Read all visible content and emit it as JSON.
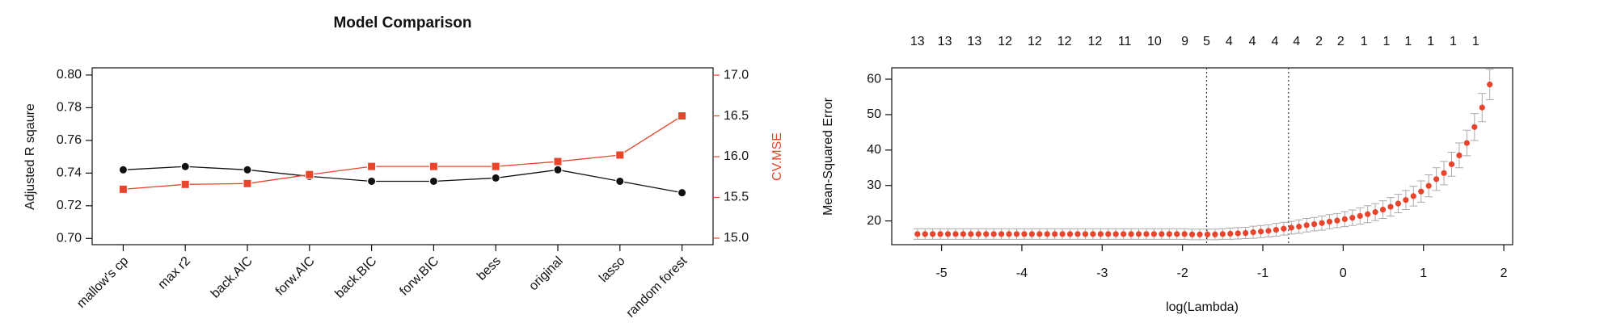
{
  "chart_data": [
    {
      "type": "line",
      "title": "Model Comparison",
      "ylabel": "Adjusted R sqaure",
      "y2label": "CV.MSE",
      "categories": [
        "mallow's cp",
        "max r2",
        "back.AIC",
        "forw.AIC",
        "back.BIC",
        "forw.BIC",
        "bess",
        "original",
        "lasso",
        "random forest"
      ],
      "series": [
        {
          "color": "#111111",
          "values": [
            0.742,
            0.744,
            0.742,
            0.738,
            0.735,
            0.735,
            0.737,
            0.742,
            0.735,
            0.728
          ]
        },
        {
          "color": "#e8452c",
          "axis": "y2",
          "values": [
            15.6,
            15.66,
            15.67,
            15.78,
            15.88,
            15.88,
            15.88,
            15.94,
            16.02,
            16.5
          ]
        }
      ],
      "ylim": [
        0.6962,
        0.8044
      ],
      "yticks": [
        {
          "value": 0.7,
          "label": "0.70"
        },
        {
          "value": 0.72,
          "label": "0.72"
        },
        {
          "value": 0.74,
          "label": "0.74"
        },
        {
          "value": 0.76,
          "label": "0.76"
        },
        {
          "value": 0.78,
          "label": "0.78"
        },
        {
          "value": 0.8,
          "label": "0.80"
        }
      ],
      "y2lim": [
        14.92,
        17.09
      ],
      "y2ticks": [
        {
          "value": 15,
          "label": "15.0"
        },
        {
          "value": 15.5,
          "label": "15.5"
        },
        {
          "value": 16,
          "label": "16.0"
        },
        {
          "value": 16.5,
          "label": "16.5"
        },
        {
          "value": 17,
          "label": "17.0"
        }
      ],
      "y2color": "#e8452c"
    },
    {
      "type": "errorbar",
      "xlabel": "log(Lambda)",
      "ylabel": "Mean-Squared Error",
      "color": "#e8452c",
      "error_color": "#aaaaaa",
      "x": [
        -5.3,
        -5.205,
        -5.11,
        -5.015,
        -4.92,
        -4.825,
        -4.73,
        -4.635,
        -4.54,
        -4.445,
        -4.35,
        -4.255,
        -4.16,
        -4.065,
        -3.97,
        -3.875,
        -3.78,
        -3.685,
        -3.59,
        -3.495,
        -3.4,
        -3.305,
        -3.21,
        -3.115,
        -3.02,
        -2.925,
        -2.83,
        -2.735,
        -2.64,
        -2.545,
        -2.45,
        -2.355,
        -2.26,
        -2.165,
        -2.07,
        -1.975,
        -1.88,
        -1.785,
        -1.69,
        -1.595,
        -1.5,
        -1.405,
        -1.31,
        -1.215,
        -1.12,
        -1.025,
        -0.93,
        -0.835,
        -0.74,
        -0.645,
        -0.55,
        -0.455,
        -0.36,
        -0.265,
        -0.17,
        -0.075,
        0.02,
        0.115,
        0.21,
        0.305,
        0.4,
        0.495,
        0.59,
        0.685,
        0.78,
        0.875,
        0.97,
        1.065,
        1.16,
        1.255,
        1.35,
        1.445,
        1.54,
        1.635,
        1.73,
        1.825
      ],
      "values": [
        16.3,
        16.3,
        16.3,
        16.3,
        16.3,
        16.3,
        16.3,
        16.3,
        16.3,
        16.3,
        16.3,
        16.3,
        16.3,
        16.3,
        16.3,
        16.3,
        16.3,
        16.3,
        16.3,
        16.3,
        16.3,
        16.3,
        16.3,
        16.3,
        16.3,
        16.3,
        16.3,
        16.3,
        16.3,
        16.3,
        16.3,
        16.3,
        16.3,
        16.3,
        16.3,
        16.3,
        16.2,
        16.2,
        16.2,
        16.2,
        16.3,
        16.4,
        16.5,
        16.6,
        16.8,
        17.0,
        17.2,
        17.5,
        17.8,
        18.1,
        18.4,
        18.8,
        19.1,
        19.4,
        19.8,
        20.1,
        20.5,
        20.9,
        21.4,
        21.9,
        22.5,
        23.2,
        24.0,
        24.9,
        25.9,
        27.0,
        28.3,
        29.9,
        31.8,
        33.5,
        36.0,
        38.5,
        42.0,
        46.5,
        52.0,
        58.5
      ],
      "errors": [
        1.5,
        1.5,
        1.5,
        1.5,
        1.5,
        1.5,
        1.5,
        1.5,
        1.5,
        1.5,
        1.5,
        1.5,
        1.5,
        1.5,
        1.5,
        1.5,
        1.5,
        1.5,
        1.5,
        1.5,
        1.5,
        1.5,
        1.5,
        1.5,
        1.5,
        1.5,
        1.5,
        1.5,
        1.5,
        1.5,
        1.5,
        1.5,
        1.5,
        1.5,
        1.5,
        1.5,
        1.5,
        1.5,
        1.5,
        1.5,
        1.5,
        1.6,
        1.6,
        1.6,
        1.7,
        1.7,
        1.7,
        1.8,
        1.8,
        1.8,
        1.9,
        1.9,
        1.9,
        2.0,
        2.0,
        2.0,
        2.1,
        2.2,
        2.3,
        2.4,
        2.4,
        2.5,
        2.6,
        2.6,
        2.7,
        2.8,
        3.0,
        3.1,
        3.2,
        3.3,
        3.4,
        3.5,
        3.6,
        3.8,
        4.0,
        4.3
      ],
      "xlim": [
        -5.62,
        2.11
      ],
      "xticks": [
        -5,
        -4,
        -3,
        -2,
        -1,
        0,
        1,
        2
      ],
      "ylim": [
        13.3,
        63.2
      ],
      "yticks": [
        20,
        30,
        40,
        50,
        60
      ],
      "top_ticks": [
        {
          "value": -5.3,
          "label": "13"
        },
        {
          "value": -4.96,
          "label": "13"
        },
        {
          "value": -4.59,
          "label": "13"
        },
        {
          "value": -4.21,
          "label": "12"
        },
        {
          "value": -3.84,
          "label": "12"
        },
        {
          "value": -3.47,
          "label": "12"
        },
        {
          "value": -3.09,
          "label": "12"
        },
        {
          "value": -2.72,
          "label": "11"
        },
        {
          "value": -2.35,
          "label": "10"
        },
        {
          "value": -1.97,
          "label": "9"
        },
        {
          "value": -1.7,
          "label": "5"
        },
        {
          "value": -1.42,
          "label": "4"
        },
        {
          "value": -1.13,
          "label": "4"
        },
        {
          "value": -0.85,
          "label": "4"
        },
        {
          "value": -0.58,
          "label": "4"
        },
        {
          "value": -0.3,
          "label": "2"
        },
        {
          "value": -0.03,
          "label": "2"
        },
        {
          "value": 0.26,
          "label": "1"
        },
        {
          "value": 0.54,
          "label": "1"
        },
        {
          "value": 0.81,
          "label": "1"
        },
        {
          "value": 1.09,
          "label": "1"
        },
        {
          "value": 1.37,
          "label": "1"
        },
        {
          "value": 1.65,
          "label": "1"
        }
      ],
      "vlines": [
        -1.7,
        -0.68
      ]
    }
  ]
}
